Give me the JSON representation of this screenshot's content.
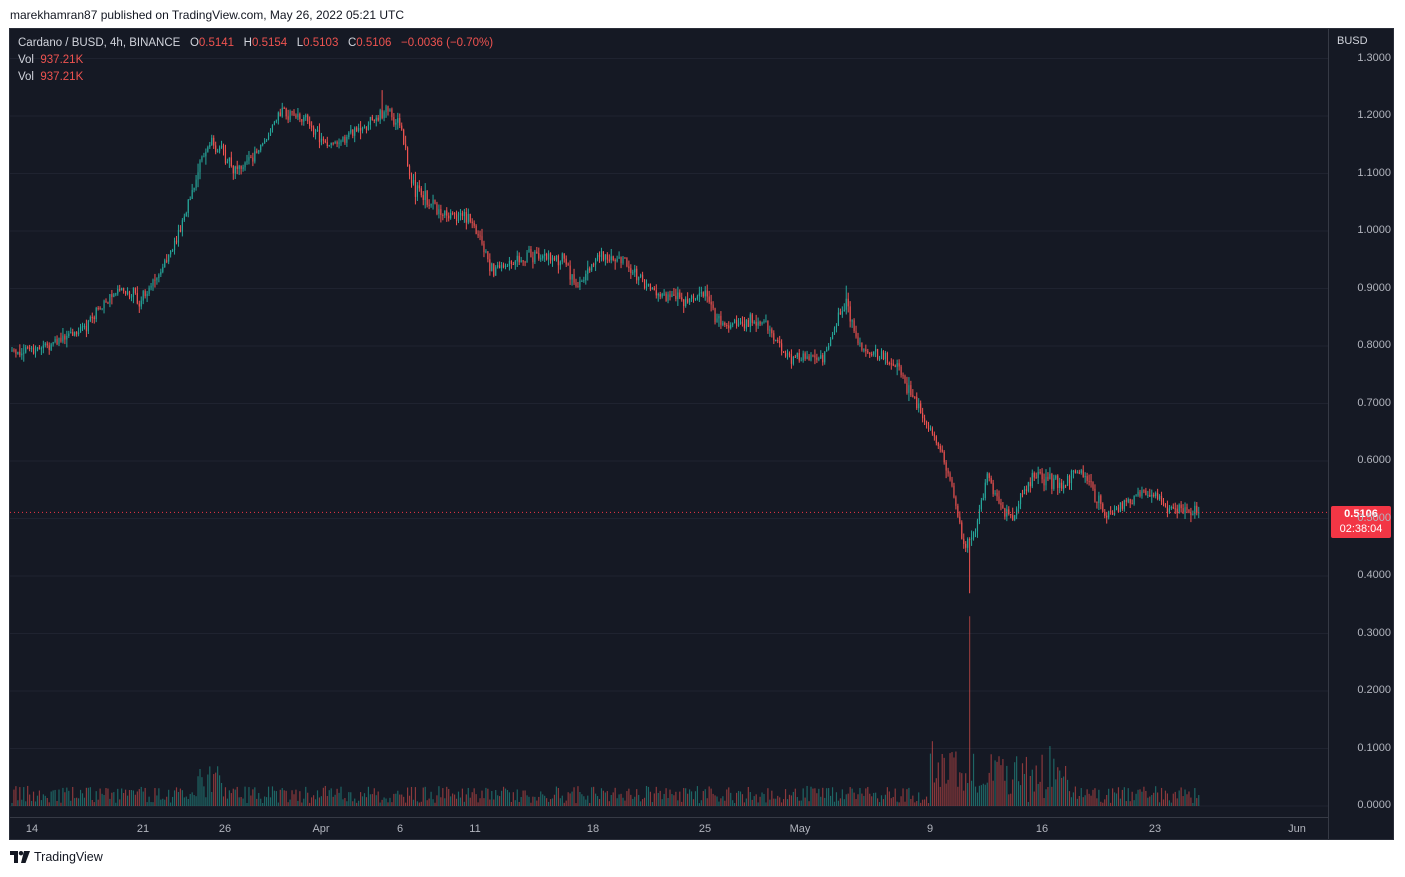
{
  "header": {
    "published": "marekhamran87 published on TradingView.com, May 26, 2022 05:21 UTC"
  },
  "legend": {
    "symbol": "Cardano / BUSD, 4h, BINANCE",
    "o_label": "O",
    "o_value": "0.5141",
    "h_label": "H",
    "h_value": "0.5154",
    "l_label": "L",
    "l_value": "0.5103",
    "c_label": "C",
    "c_value": "0.5106",
    "change": "−0.0036 (−0.70%)",
    "vol_label_1": "Vol",
    "vol_value_1": "937.21K",
    "vol_label_2": "Vol",
    "vol_value_2": "937.21K"
  },
  "price_axis": {
    "currency": "BUSD",
    "ticks": [
      "1.3000",
      "1.2000",
      "1.1000",
      "1.0000",
      "0.9000",
      "0.8000",
      "0.7000",
      "0.6000",
      "0.5000",
      "0.4000",
      "0.3000",
      "0.2000",
      "0.1000",
      "0.0000"
    ],
    "last_price": "0.5106",
    "countdown": "02:38:04"
  },
  "time_axis": {
    "ticks": [
      "14",
      "21",
      "26",
      "Apr",
      "6",
      "11",
      "18",
      "25",
      "May",
      "9",
      "16",
      "23",
      "Jun"
    ]
  },
  "colors": {
    "background": "#151924",
    "up": "#26a69a",
    "down": "#ef5350",
    "last_price_tag": "#f23645"
  },
  "footer": {
    "brand": "TradingView",
    "logo_icon": "tradingview-logo-icon"
  },
  "chart_data": {
    "type": "candlestick",
    "title": "Cardano / BUSD, 4h, BINANCE",
    "ylabel": "BUSD",
    "ylim": [
      0.0,
      1.3
    ],
    "last_price": 0.5106,
    "price_path": [
      {
        "d": 0,
        "p": 0.79
      },
      {
        "d": 3,
        "p": 0.8
      },
      {
        "d": 6,
        "p": 0.83
      },
      {
        "d": 9,
        "p": 0.9
      },
      {
        "d": 11,
        "p": 0.88
      },
      {
        "d": 14,
        "p": 0.98
      },
      {
        "d": 16,
        "p": 1.12
      },
      {
        "d": 17,
        "p": 1.16
      },
      {
        "d": 19,
        "p": 1.1
      },
      {
        "d": 21,
        "p": 1.14
      },
      {
        "d": 23,
        "p": 1.21
      },
      {
        "d": 25,
        "p": 1.19
      },
      {
        "d": 27,
        "p": 1.15
      },
      {
        "d": 30,
        "p": 1.18
      },
      {
        "d": 32,
        "p": 1.21
      },
      {
        "d": 33,
        "p": 1.18
      },
      {
        "d": 34,
        "p": 1.08
      },
      {
        "d": 35,
        "p": 1.06
      },
      {
        "d": 37,
        "p": 1.03
      },
      {
        "d": 39,
        "p": 1.02
      },
      {
        "d": 41,
        "p": 0.93
      },
      {
        "d": 44,
        "p": 0.96
      },
      {
        "d": 47,
        "p": 0.95
      },
      {
        "d": 48,
        "p": 0.9
      },
      {
        "d": 50,
        "p": 0.96
      },
      {
        "d": 52,
        "p": 0.95
      },
      {
        "d": 54,
        "p": 0.9
      },
      {
        "d": 57,
        "p": 0.88
      },
      {
        "d": 59,
        "p": 0.89
      },
      {
        "d": 60,
        "p": 0.84
      },
      {
        "d": 64,
        "p": 0.84
      },
      {
        "d": 66,
        "p": 0.78
      },
      {
        "d": 69,
        "p": 0.78
      },
      {
        "d": 71,
        "p": 0.88
      },
      {
        "d": 72,
        "p": 0.8
      },
      {
        "d": 75,
        "p": 0.77
      },
      {
        "d": 77,
        "p": 0.7
      },
      {
        "d": 79,
        "p": 0.62
      },
      {
        "d": 80,
        "p": 0.56
      },
      {
        "d": 81,
        "p": 0.45
      },
      {
        "d": 82,
        "p": 0.48
      },
      {
        "d": 83,
        "p": 0.58
      },
      {
        "d": 84,
        "p": 0.52
      },
      {
        "d": 85,
        "p": 0.5
      },
      {
        "d": 87,
        "p": 0.58
      },
      {
        "d": 89,
        "p": 0.56
      },
      {
        "d": 91,
        "p": 0.58
      },
      {
        "d": 93,
        "p": 0.51
      },
      {
        "d": 95,
        "p": 0.53
      },
      {
        "d": 97,
        "p": 0.55
      },
      {
        "d": 98,
        "p": 0.52
      },
      {
        "d": 100,
        "p": 0.51
      },
      {
        "d": 101,
        "p": 0.5106
      }
    ],
    "notable_wicks": [
      {
        "d": 81.5,
        "low": 0.37
      },
      {
        "d": 71,
        "high": 0.905
      },
      {
        "d": 31.5,
        "high": 1.245
      }
    ],
    "volume_spike": {
      "d": 81.5,
      "value": 0.33,
      "unit": "price-axis scale"
    }
  }
}
